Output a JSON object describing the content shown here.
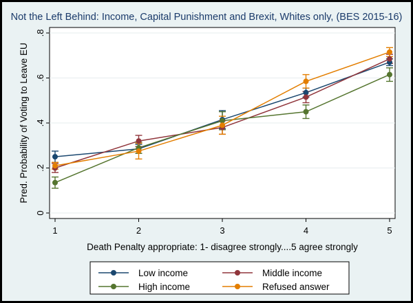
{
  "chart_data": {
    "type": "line",
    "title": "Not the Left Behind: Income, Capital Punishment and Brexit, Whites only, (BES 2015-16)",
    "xlabel": "Death Penalty appropriate: 1- disagree strongly....5 agree strongly",
    "ylabel": "Pred. Probability of Voting to Leave EU",
    "x": [
      1,
      2,
      3,
      4,
      5
    ],
    "x_tick_labels": [
      "1",
      "2",
      "3",
      "4",
      "5"
    ],
    "y_ticks": [
      0,
      0.2,
      0.4,
      0.6,
      0.8
    ],
    "y_tick_labels": [
      "0",
      ".2",
      ".4",
      ".6",
      ".8"
    ],
    "xlim": [
      1,
      5
    ],
    "ylim": [
      0,
      0.8
    ],
    "grid": "horizontal",
    "legend_position": "bottom",
    "series": [
      {
        "name": "Low income",
        "color": "#1a476f",
        "values": [
          0.25,
          0.285,
          0.415,
          0.535,
          0.67
        ],
        "ci_low": [
          0.225,
          0.265,
          0.375,
          0.515,
          0.655
        ],
        "ci_high": [
          0.275,
          0.305,
          0.455,
          0.555,
          0.685
        ]
      },
      {
        "name": "Middle income",
        "color": "#90353b",
        "values": [
          0.2,
          0.32,
          0.38,
          0.515,
          0.685
        ],
        "ci_low": [
          0.18,
          0.295,
          0.35,
          0.49,
          0.665
        ],
        "ci_high": [
          0.22,
          0.345,
          0.41,
          0.54,
          0.705
        ]
      },
      {
        "name": "High income",
        "color": "#55752f",
        "values": [
          0.135,
          0.29,
          0.41,
          0.45,
          0.615
        ],
        "ci_low": [
          0.11,
          0.265,
          0.37,
          0.42,
          0.585
        ],
        "ci_high": [
          0.16,
          0.315,
          0.45,
          0.48,
          0.645
        ]
      },
      {
        "name": "Refused answer",
        "color": "#e37e00",
        "values": [
          0.21,
          0.275,
          0.39,
          0.585,
          0.715
        ],
        "ci_low": [
          0.195,
          0.24,
          0.35,
          0.555,
          0.695
        ],
        "ci_high": [
          0.225,
          0.31,
          0.43,
          0.615,
          0.735
        ]
      }
    ]
  }
}
